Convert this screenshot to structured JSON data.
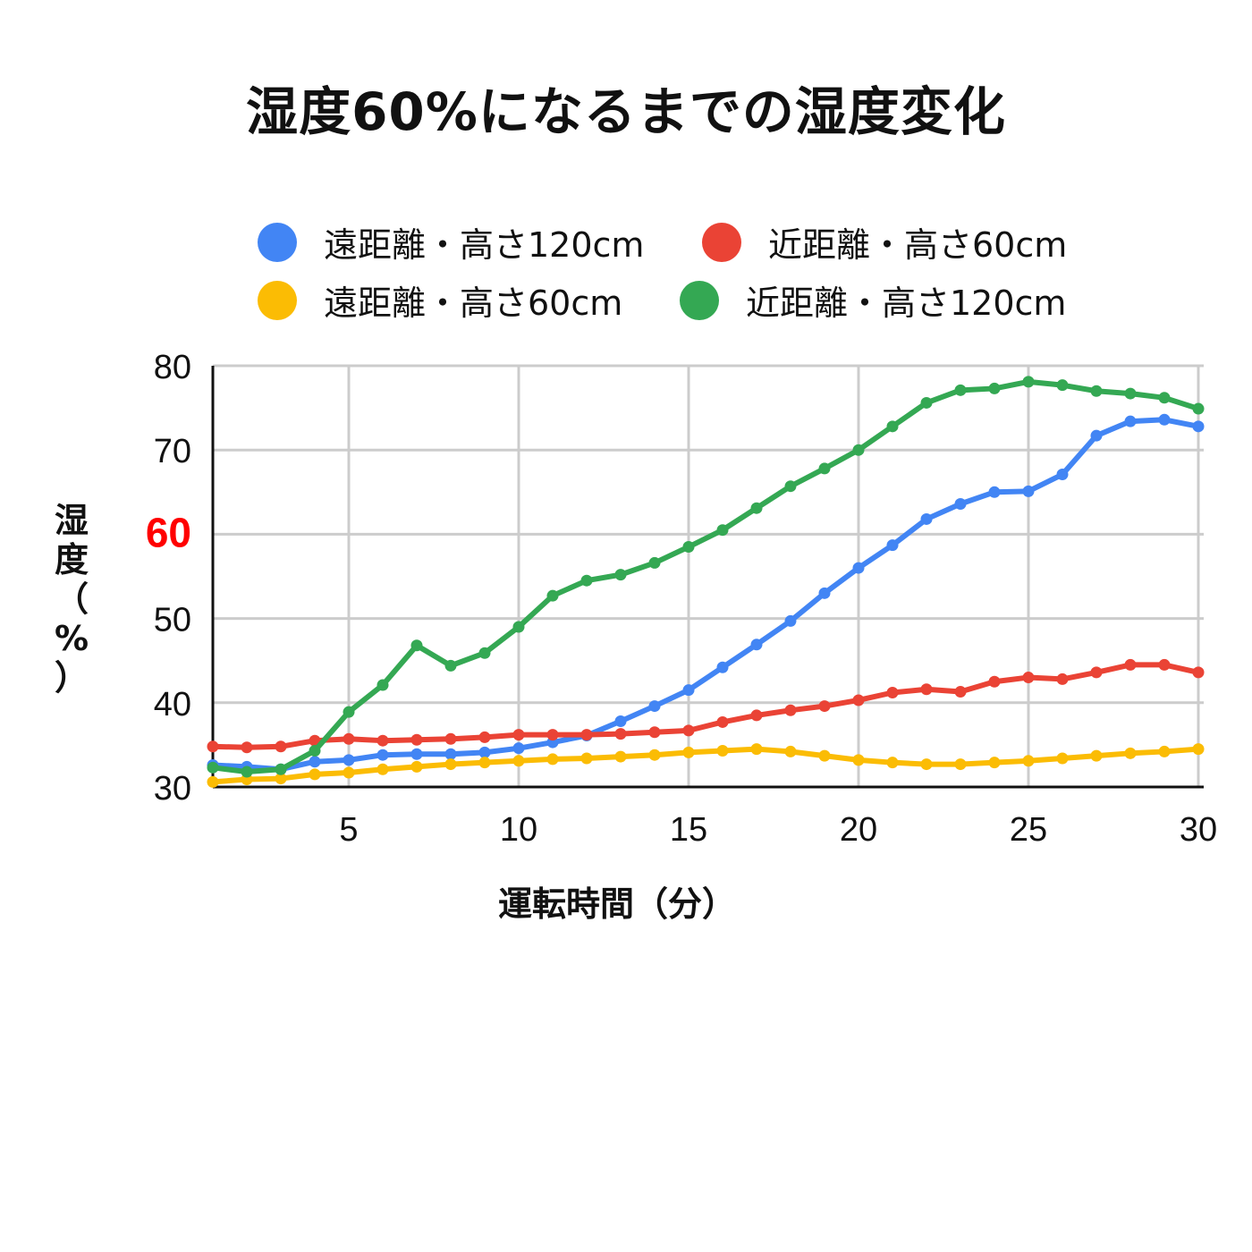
{
  "chart_data": {
    "type": "line",
    "title": "湿度60%になるまでの湿度変化",
    "xlabel": "運転時間（分）",
    "ylabel": [
      "湿",
      "度",
      "（",
      "%",
      "）"
    ],
    "xlim": [
      1,
      30
    ],
    "ylim": [
      30,
      80
    ],
    "xticks": [
      5,
      10,
      15,
      20,
      25,
      30
    ],
    "yticks": [
      30,
      40,
      50,
      60,
      70,
      80
    ],
    "highlight_tick": 60,
    "highlight_color": "#ff0000",
    "grid": true,
    "legend_position": "top",
    "x": [
      1,
      2,
      3,
      4,
      5,
      6,
      7,
      8,
      9,
      10,
      11,
      12,
      13,
      14,
      15,
      16,
      17,
      18,
      19,
      20,
      21,
      22,
      23,
      24,
      25,
      26,
      27,
      28,
      29,
      30
    ],
    "series": [
      {
        "name": "遠距離・高さ120cm",
        "color": "#4285f4",
        "values": [
          32.6,
          32.4,
          32.1,
          33.0,
          33.2,
          33.8,
          33.9,
          33.9,
          34.1,
          34.6,
          35.3,
          36.1,
          37.8,
          39.6,
          41.5,
          44.2,
          46.9,
          49.7,
          53.0,
          56.0,
          58.7,
          61.8,
          63.6,
          65.0,
          65.1,
          67.1,
          71.7,
          73.4,
          73.6,
          72.8
        ]
      },
      {
        "name": "近距離・高さ60cm",
        "color": "#ea4335",
        "values": [
          34.8,
          34.7,
          34.8,
          35.5,
          35.7,
          35.5,
          35.6,
          35.7,
          35.9,
          36.2,
          36.2,
          36.2,
          36.3,
          36.5,
          36.7,
          37.7,
          38.5,
          39.1,
          39.6,
          40.3,
          41.2,
          41.6,
          41.3,
          42.5,
          43.0,
          42.8,
          43.6,
          44.5,
          44.5,
          43.6
        ]
      },
      {
        "name": "遠距離・高さ60cm",
        "color": "#fbbc04",
        "values": [
          30.6,
          30.9,
          31.0,
          31.5,
          31.7,
          32.1,
          32.4,
          32.7,
          32.9,
          33.1,
          33.3,
          33.4,
          33.6,
          33.8,
          34.1,
          34.3,
          34.5,
          34.2,
          33.7,
          33.2,
          32.9,
          32.7,
          32.7,
          32.9,
          33.1,
          33.4,
          33.7,
          34.0,
          34.2,
          34.5
        ]
      },
      {
        "name": "近距離・高さ120cm",
        "color": "#34a853",
        "values": [
          32.3,
          31.8,
          32.1,
          34.3,
          38.9,
          42.1,
          46.8,
          44.4,
          45.9,
          49.0,
          52.7,
          54.5,
          55.2,
          56.6,
          58.5,
          60.5,
          63.1,
          65.7,
          67.8,
          70.0,
          72.8,
          75.6,
          77.1,
          77.3,
          78.1,
          77.7,
          77.0,
          76.7,
          76.2,
          74.9
        ]
      }
    ]
  }
}
